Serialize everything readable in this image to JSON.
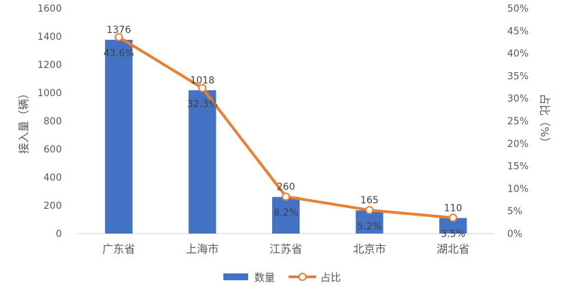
{
  "chart_data": {
    "type": "bar",
    "categories": [
      "广东省",
      "上海市",
      "江苏省",
      "北京市",
      "湖北省"
    ],
    "series": [
      {
        "name": "数量",
        "type": "bar",
        "axis": "left",
        "values": [
          1376,
          1018,
          260,
          165,
          110
        ],
        "data_labels": [
          "1376",
          "1018",
          "260",
          "165",
          "110"
        ],
        "color": "#4472C4"
      },
      {
        "name": "占比",
        "type": "line",
        "axis": "right",
        "values": [
          43.6,
          32.3,
          8.2,
          5.2,
          3.5
        ],
        "data_labels": [
          "43.6%",
          "32.3%",
          "8.2%",
          "5.2%",
          "3.5%"
        ],
        "color": "#ED7D31"
      }
    ],
    "ylabel": "接入量（辆）",
    "y2label": "占比（%）",
    "ylim": [
      0,
      1600
    ],
    "yticks": [
      0,
      200,
      400,
      600,
      800,
      1000,
      1200,
      1400,
      1600
    ],
    "y2lim": [
      0,
      50
    ],
    "y2ticks": [
      "0%",
      "5%",
      "10%",
      "15%",
      "20%",
      "25%",
      "30%",
      "35%",
      "40%",
      "45%",
      "50%"
    ],
    "grid": false,
    "legend_position": "bottom"
  }
}
